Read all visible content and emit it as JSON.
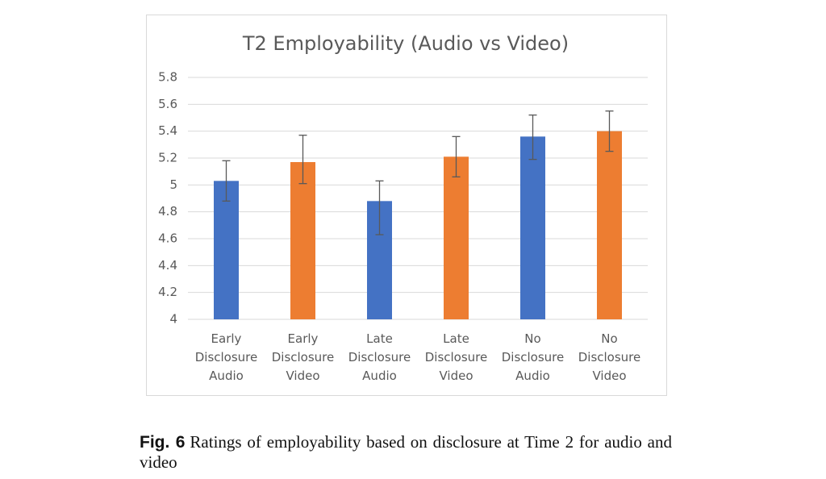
{
  "chart_data": {
    "type": "bar",
    "title": "T2 Employability (Audio vs Video)",
    "categories": [
      "Early Disclosure Audio",
      "Early Disclosure Video",
      "Late Disclosure Audio",
      "Late Disclosure Video",
      "No Disclosure Audio",
      "No Disclosure Video"
    ],
    "values": [
      5.03,
      5.17,
      4.88,
      5.21,
      5.36,
      5.4
    ],
    "errors_minus": [
      0.15,
      0.16,
      0.25,
      0.15,
      0.17,
      0.15
    ],
    "errors_plus": [
      0.15,
      0.2,
      0.15,
      0.15,
      0.16,
      0.15
    ],
    "colors": [
      "#4472c4",
      "#ed7d31",
      "#4472c4",
      "#ed7d31",
      "#4472c4",
      "#ed7d31"
    ],
    "ylim": [
      4,
      5.8
    ],
    "yticks": [
      4,
      4.2,
      4.4,
      4.6,
      4.8,
      5,
      5.2,
      5.4,
      5.6,
      5.8
    ],
    "grid": true
  },
  "caption": {
    "label": "Fig. 6",
    "text": "Ratings of employability based on disclosure at Time 2 for audio and video"
  }
}
